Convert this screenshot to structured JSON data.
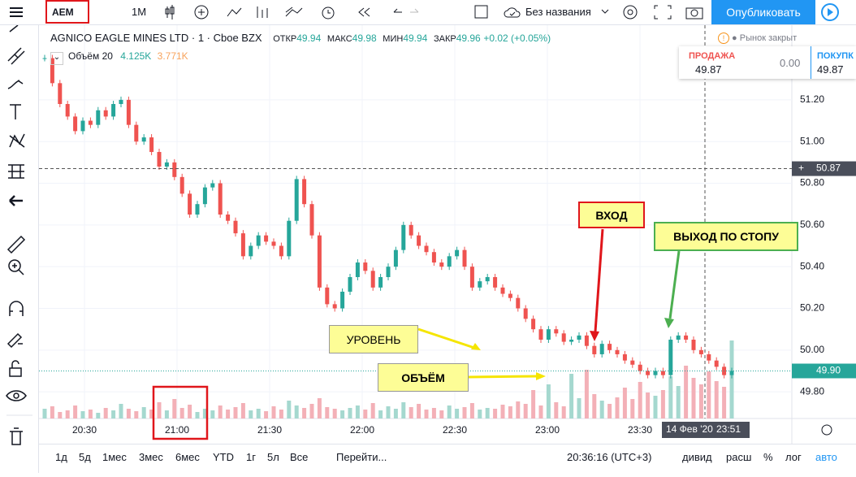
{
  "toolbar": {
    "symbol": "AEM",
    "interval": "1M",
    "layout_name": "Без названия",
    "publish": "Опубликовать"
  },
  "legend": {
    "name": "AGNICO EAGLE MINES LTD",
    "interval": "1",
    "exchange": "Cboe BZX",
    "open_label": "ОТКР",
    "open": "49.94",
    "high_label": "МАКС",
    "high": "49.98",
    "low_label": "МИН",
    "low": "49.94",
    "close_label": "ЗАКР",
    "close": "49.96",
    "change": "+0.02 (+0.05%)",
    "volume_label": "Объём 20",
    "volume": "4.125K",
    "volume_ma": "3.771K"
  },
  "market_status": "Рынок закрыт",
  "trade": {
    "sell_label": "ПРОДАЖА",
    "sell_price": "49.87",
    "spread": "0.00",
    "buy_label": "ПОКУПК",
    "buy_price": "49.87"
  },
  "chart_data": {
    "type": "candlestick",
    "close": [
      51.4,
      51.28,
      51.18,
      51.12,
      51.05,
      51.1,
      51.08,
      51.15,
      51.12,
      51.18,
      51.2,
      51.08,
      51.0,
      51.02,
      50.95,
      50.88,
      50.9,
      50.83,
      50.75,
      50.65,
      50.7,
      50.78,
      50.8,
      50.65,
      50.62,
      50.56,
      50.45,
      50.5,
      50.55,
      50.52,
      50.5,
      50.45,
      50.62,
      50.82,
      50.7,
      50.55,
      50.3,
      50.22,
      50.2,
      50.28,
      50.35,
      50.42,
      50.38,
      50.3,
      50.35,
      50.4,
      50.48,
      50.6,
      50.55,
      50.5,
      50.47,
      50.42,
      50.4,
      50.45,
      50.48,
      50.4,
      50.3,
      50.33,
      50.35,
      50.3,
      50.27,
      50.25,
      50.2,
      50.15,
      50.1,
      50.05,
      50.1,
      50.08,
      50.04,
      50.05,
      50.07,
      50.02,
      49.98,
      50.03,
      50.0,
      49.98,
      49.95,
      49.93,
      49.9,
      49.88,
      49.9,
      49.88,
      50.05,
      50.07,
      50.05,
      50.0,
      49.98,
      49.95,
      49.92,
      49.88,
      49.9
    ],
    "volume": [
      1.2,
      1.5,
      0.8,
      1.0,
      1.6,
      0.9,
      1.1,
      0.7,
      1.3,
      1.0,
      1.8,
      1.2,
      0.9,
      1.4,
      1.1,
      2.0,
      1.0,
      2.4,
      1.3,
      1.7,
      0.8,
      1.2,
      1.0,
      1.6,
      1.1,
      1.4,
      1.9,
      1.0,
      1.2,
      0.9,
      1.5,
      1.1,
      2.2,
      1.6,
      1.3,
      1.8,
      2.5,
      1.4,
      1.2,
      1.0,
      1.3,
      1.6,
      1.1,
      1.9,
      1.0,
      1.5,
      1.2,
      2.0,
      1.4,
      1.8,
      1.1,
      1.3,
      1.0,
      1.6,
      1.2,
      1.4,
      1.9,
      1.1,
      1.3,
      1.2,
      1.7,
      1.5,
      2.1,
      1.8,
      3.5,
      1.6,
      4.2,
      2.0,
      1.5,
      5.5,
      2.5,
      6.0,
      3.0,
      2.2,
      1.8,
      2.6,
      3.8,
      2.4,
      4.5,
      3.2,
      2.8,
      3.5,
      5.2,
      4.0,
      6.5,
      5.0,
      4.2,
      5.8,
      4.6,
      3.9,
      9.6
    ],
    "ylim": [
      49.672,
      51.558
    ],
    "yticks": [
      {
        "value": 49.8,
        "label": "49.80"
      },
      {
        "value": 50.0,
        "label": "50.00"
      },
      {
        "value": 50.2,
        "label": "50.20"
      },
      {
        "value": 50.4,
        "label": "50.40"
      },
      {
        "value": 50.6,
        "label": "50.60"
      },
      {
        "value": 50.8,
        "label": "50.80"
      },
      {
        "value": 51.0,
        "label": "51.00"
      },
      {
        "value": 51.2,
        "label": "51.20"
      }
    ],
    "crosshair_price": {
      "value": 50.87,
      "label": "50.87"
    },
    "last_price": {
      "value": 49.9,
      "label": "49.90"
    }
  },
  "time_labels": [
    "20:30",
    "21:00",
    "21:30",
    "22:00",
    "22:30",
    "23:00",
    "23:30"
  ],
  "time_cursor": {
    "date": "14 Фев '20",
    "time": "23:51"
  },
  "annotations": {
    "entry": "ВХОД",
    "exit": "ВЫХОД ПО СТОПУ",
    "level": "УРОВЕНЬ",
    "volume": "ОБЪЁМ"
  },
  "range_buttons": [
    "1д",
    "5д",
    "1мес",
    "3мес",
    "6мес",
    "YTD",
    "1г",
    "5л",
    "Все"
  ],
  "goto": "Перейти...",
  "clock": "20:36:16 (UTC+3)",
  "scale_buttons": [
    "дивид",
    "расш",
    "%",
    "лог",
    "авто"
  ]
}
